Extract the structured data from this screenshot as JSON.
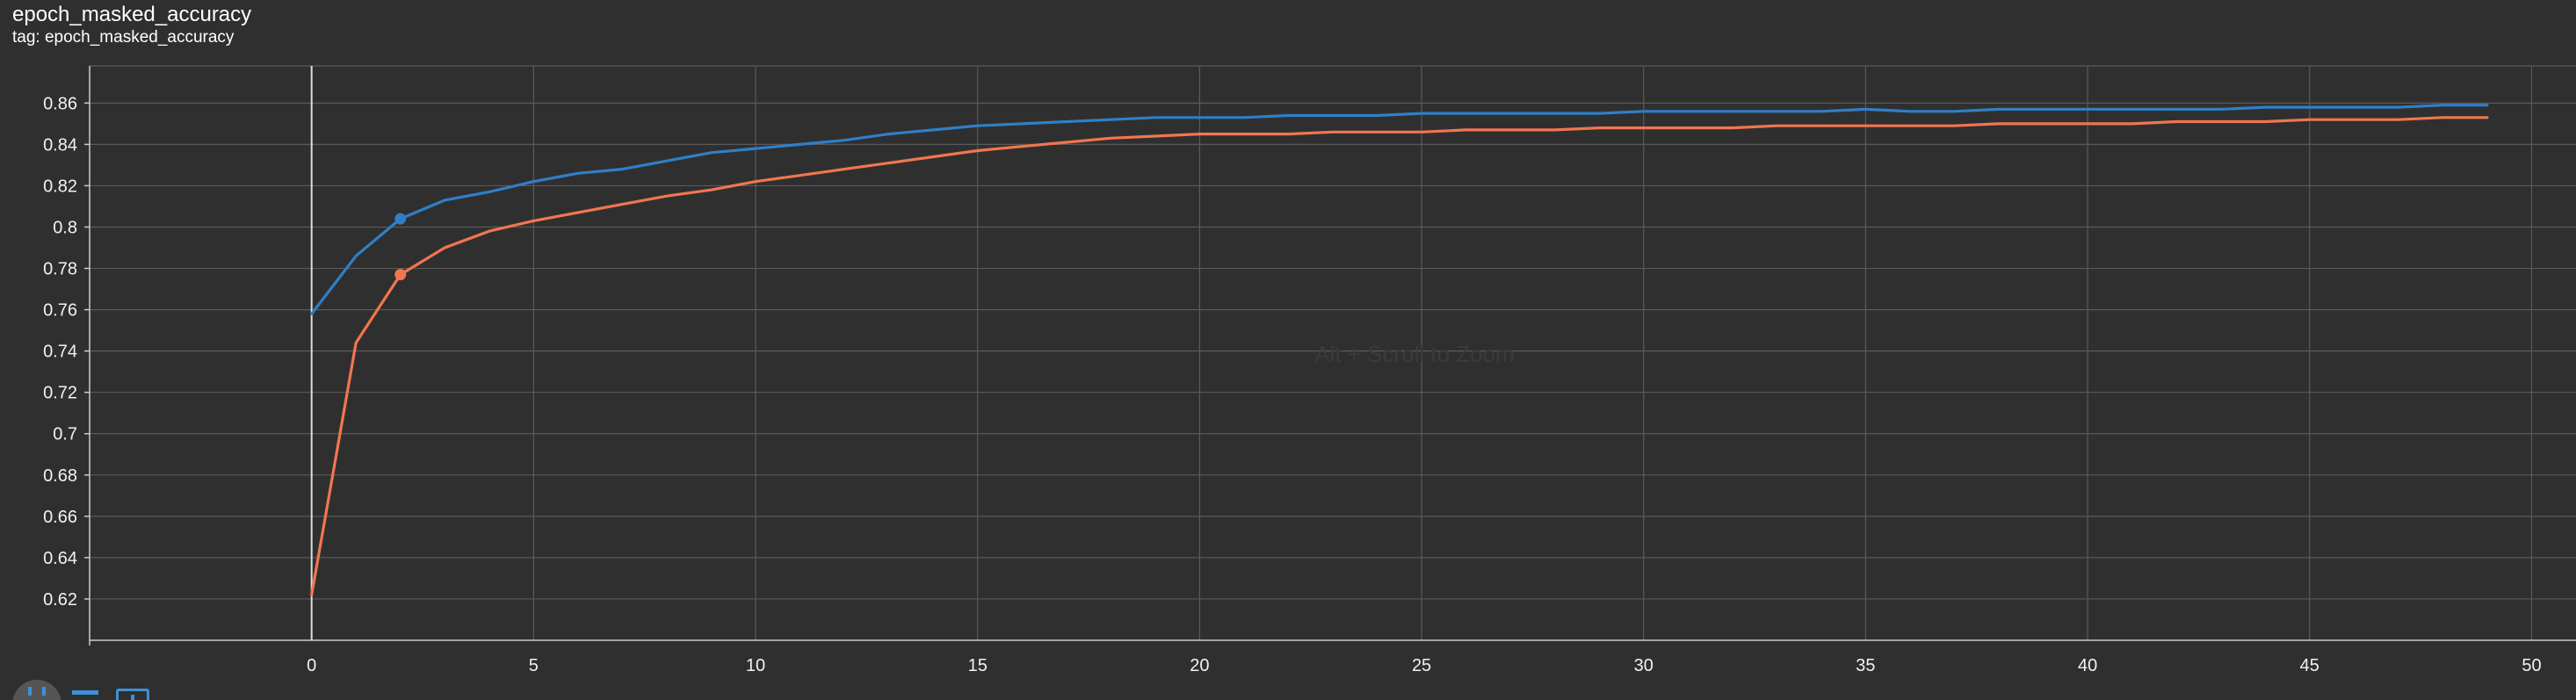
{
  "card": {
    "title": "epoch_masked_accuracy",
    "tag": "tag: epoch_masked_accuracy",
    "hint": "Alt + Scroll to Zoom"
  },
  "toolbar": {
    "fit_icon": "fit-domain-icon",
    "log_icon": "log-scale-toggle-icon",
    "box_icon": "expand-card-icon"
  },
  "colors": {
    "background": "#2f2f2f",
    "grid": "#5a5a5a",
    "axis": "#cccccc",
    "series_blue": "#2f7fc7",
    "series_orange": "#f07650"
  },
  "chart_data": {
    "type": "line",
    "title": "epoch_masked_accuracy",
    "xlabel": "",
    "ylabel": "",
    "xlim": [
      -5,
      51
    ],
    "ylim": [
      0.6,
      0.878
    ],
    "xticks": [
      0,
      5,
      10,
      15,
      20,
      25,
      30,
      35,
      40,
      45,
      50
    ],
    "yticks": [
      0.62,
      0.64,
      0.66,
      0.68,
      0.7,
      0.72,
      0.74,
      0.76,
      0.78,
      0.8,
      0.82,
      0.84,
      0.86
    ],
    "ytick_labels": [
      "0.62",
      "0.64",
      "0.66",
      "0.68",
      "0.7",
      "0.72",
      "0.74",
      "0.76",
      "0.78",
      "0.8",
      "0.82",
      "0.84",
      "0.86"
    ],
    "xtick_labels": [
      "0",
      "5",
      "10",
      "15",
      "20",
      "25",
      "30",
      "35",
      "40",
      "45",
      "50"
    ],
    "grid": true,
    "x": [
      0,
      1,
      2,
      3,
      4,
      5,
      6,
      7,
      8,
      9,
      10,
      11,
      12,
      13,
      14,
      15,
      16,
      17,
      18,
      19,
      20,
      21,
      22,
      23,
      24,
      25,
      26,
      27,
      28,
      29,
      30,
      31,
      32,
      33,
      34,
      35,
      36,
      37,
      38,
      39,
      40,
      41,
      42,
      43,
      44,
      45,
      46,
      47,
      48,
      49
    ],
    "series": [
      {
        "color": "#2f7fc7",
        "marker_index": 2,
        "values": [
          0.758,
          0.786,
          0.804,
          0.813,
          0.817,
          0.822,
          0.826,
          0.828,
          0.832,
          0.836,
          0.838,
          0.84,
          0.842,
          0.845,
          0.847,
          0.849,
          0.85,
          0.851,
          0.852,
          0.853,
          0.853,
          0.853,
          0.854,
          0.854,
          0.854,
          0.855,
          0.855,
          0.855,
          0.855,
          0.855,
          0.856,
          0.856,
          0.856,
          0.856,
          0.856,
          0.857,
          0.856,
          0.856,
          0.857,
          0.857,
          0.857,
          0.857,
          0.857,
          0.857,
          0.858,
          0.858,
          0.858,
          0.858,
          0.859,
          0.859
        ]
      },
      {
        "color": "#f07650",
        "marker_index": 2,
        "values": [
          0.622,
          0.744,
          0.777,
          0.79,
          0.798,
          0.803,
          0.807,
          0.811,
          0.815,
          0.818,
          0.822,
          0.825,
          0.828,
          0.831,
          0.834,
          0.837,
          0.839,
          0.841,
          0.843,
          0.844,
          0.845,
          0.845,
          0.845,
          0.846,
          0.846,
          0.846,
          0.847,
          0.847,
          0.847,
          0.848,
          0.848,
          0.848,
          0.848,
          0.849,
          0.849,
          0.849,
          0.849,
          0.849,
          0.85,
          0.85,
          0.85,
          0.85,
          0.851,
          0.851,
          0.851,
          0.852,
          0.852,
          0.852,
          0.853,
          0.853
        ]
      }
    ]
  }
}
